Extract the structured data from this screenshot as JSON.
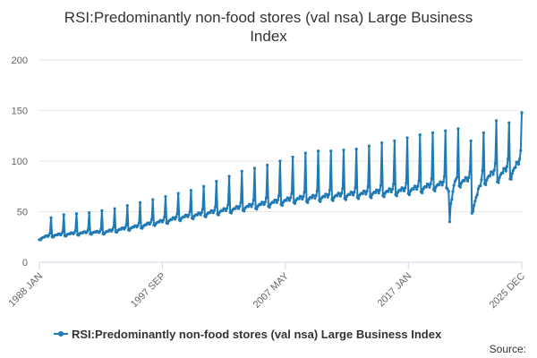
{
  "chart_data": {
    "type": "line",
    "title": "RSI:Predominantly non-food stores (val nsa) Large Business Index",
    "title_lines": [
      "RSI:Predominantly non-food stores (val nsa) Large Business",
      "Index"
    ],
    "xlabel": "",
    "ylabel": "",
    "ylim": [
      0,
      200
    ],
    "y_ticks": [
      0,
      50,
      100,
      150,
      200
    ],
    "x_ticks": [
      "1988 JAN",
      "1997 SEP",
      "2007 MAY",
      "2017 JAN",
      "2025 DEC"
    ],
    "grid": true,
    "legend_position": "bottom-center",
    "series": [
      {
        "name": "RSI:Predominantly non-food stores (val nsa) Large Business Index",
        "color": "#1f7ab5",
        "start": "1988 JAN",
        "end": "2025 DEC",
        "frequency": "monthly",
        "yearly_base_start": [
          23,
          26,
          27,
          28,
          29,
          29,
          31,
          33,
          35,
          38,
          40,
          43,
          45,
          47,
          49,
          51,
          53,
          55,
          57,
          59,
          61,
          62,
          63,
          64,
          65,
          66,
          67,
          68,
          69,
          70,
          72,
          74,
          76,
          78,
          50,
          80,
          82,
          85
        ],
        "yearly_base_end": [
          26,
          27,
          28,
          29,
          29,
          31,
          33,
          35,
          38,
          40,
          43,
          45,
          47,
          49,
          51,
          53,
          55,
          57,
          59,
          61,
          62,
          63,
          64,
          65,
          66,
          67,
          68,
          69,
          70,
          72,
          74,
          76,
          78,
          80,
          84,
          88,
          92,
          100
        ],
        "december_peaks": [
          44,
          47,
          48,
          49,
          51,
          53,
          56,
          59,
          62,
          65,
          68,
          71,
          75,
          80,
          85,
          90,
          93,
          96,
          100,
          104,
          108,
          110,
          110,
          111,
          112,
          115,
          118,
          120,
          123,
          126,
          128,
          130,
          132,
          120,
          128,
          140,
          138,
          148
        ],
        "anomaly": {
          "year": 2020,
          "dip_month": "APR",
          "dip_value": 40,
          "recovery": [
            58,
            62,
            70,
            76,
            80,
            82,
            84
          ]
        }
      }
    ]
  },
  "legend": {
    "label": "RSI:Predominantly non-food stores (val nsa) Large Business Index"
  },
  "source": {
    "label": "Source:"
  }
}
